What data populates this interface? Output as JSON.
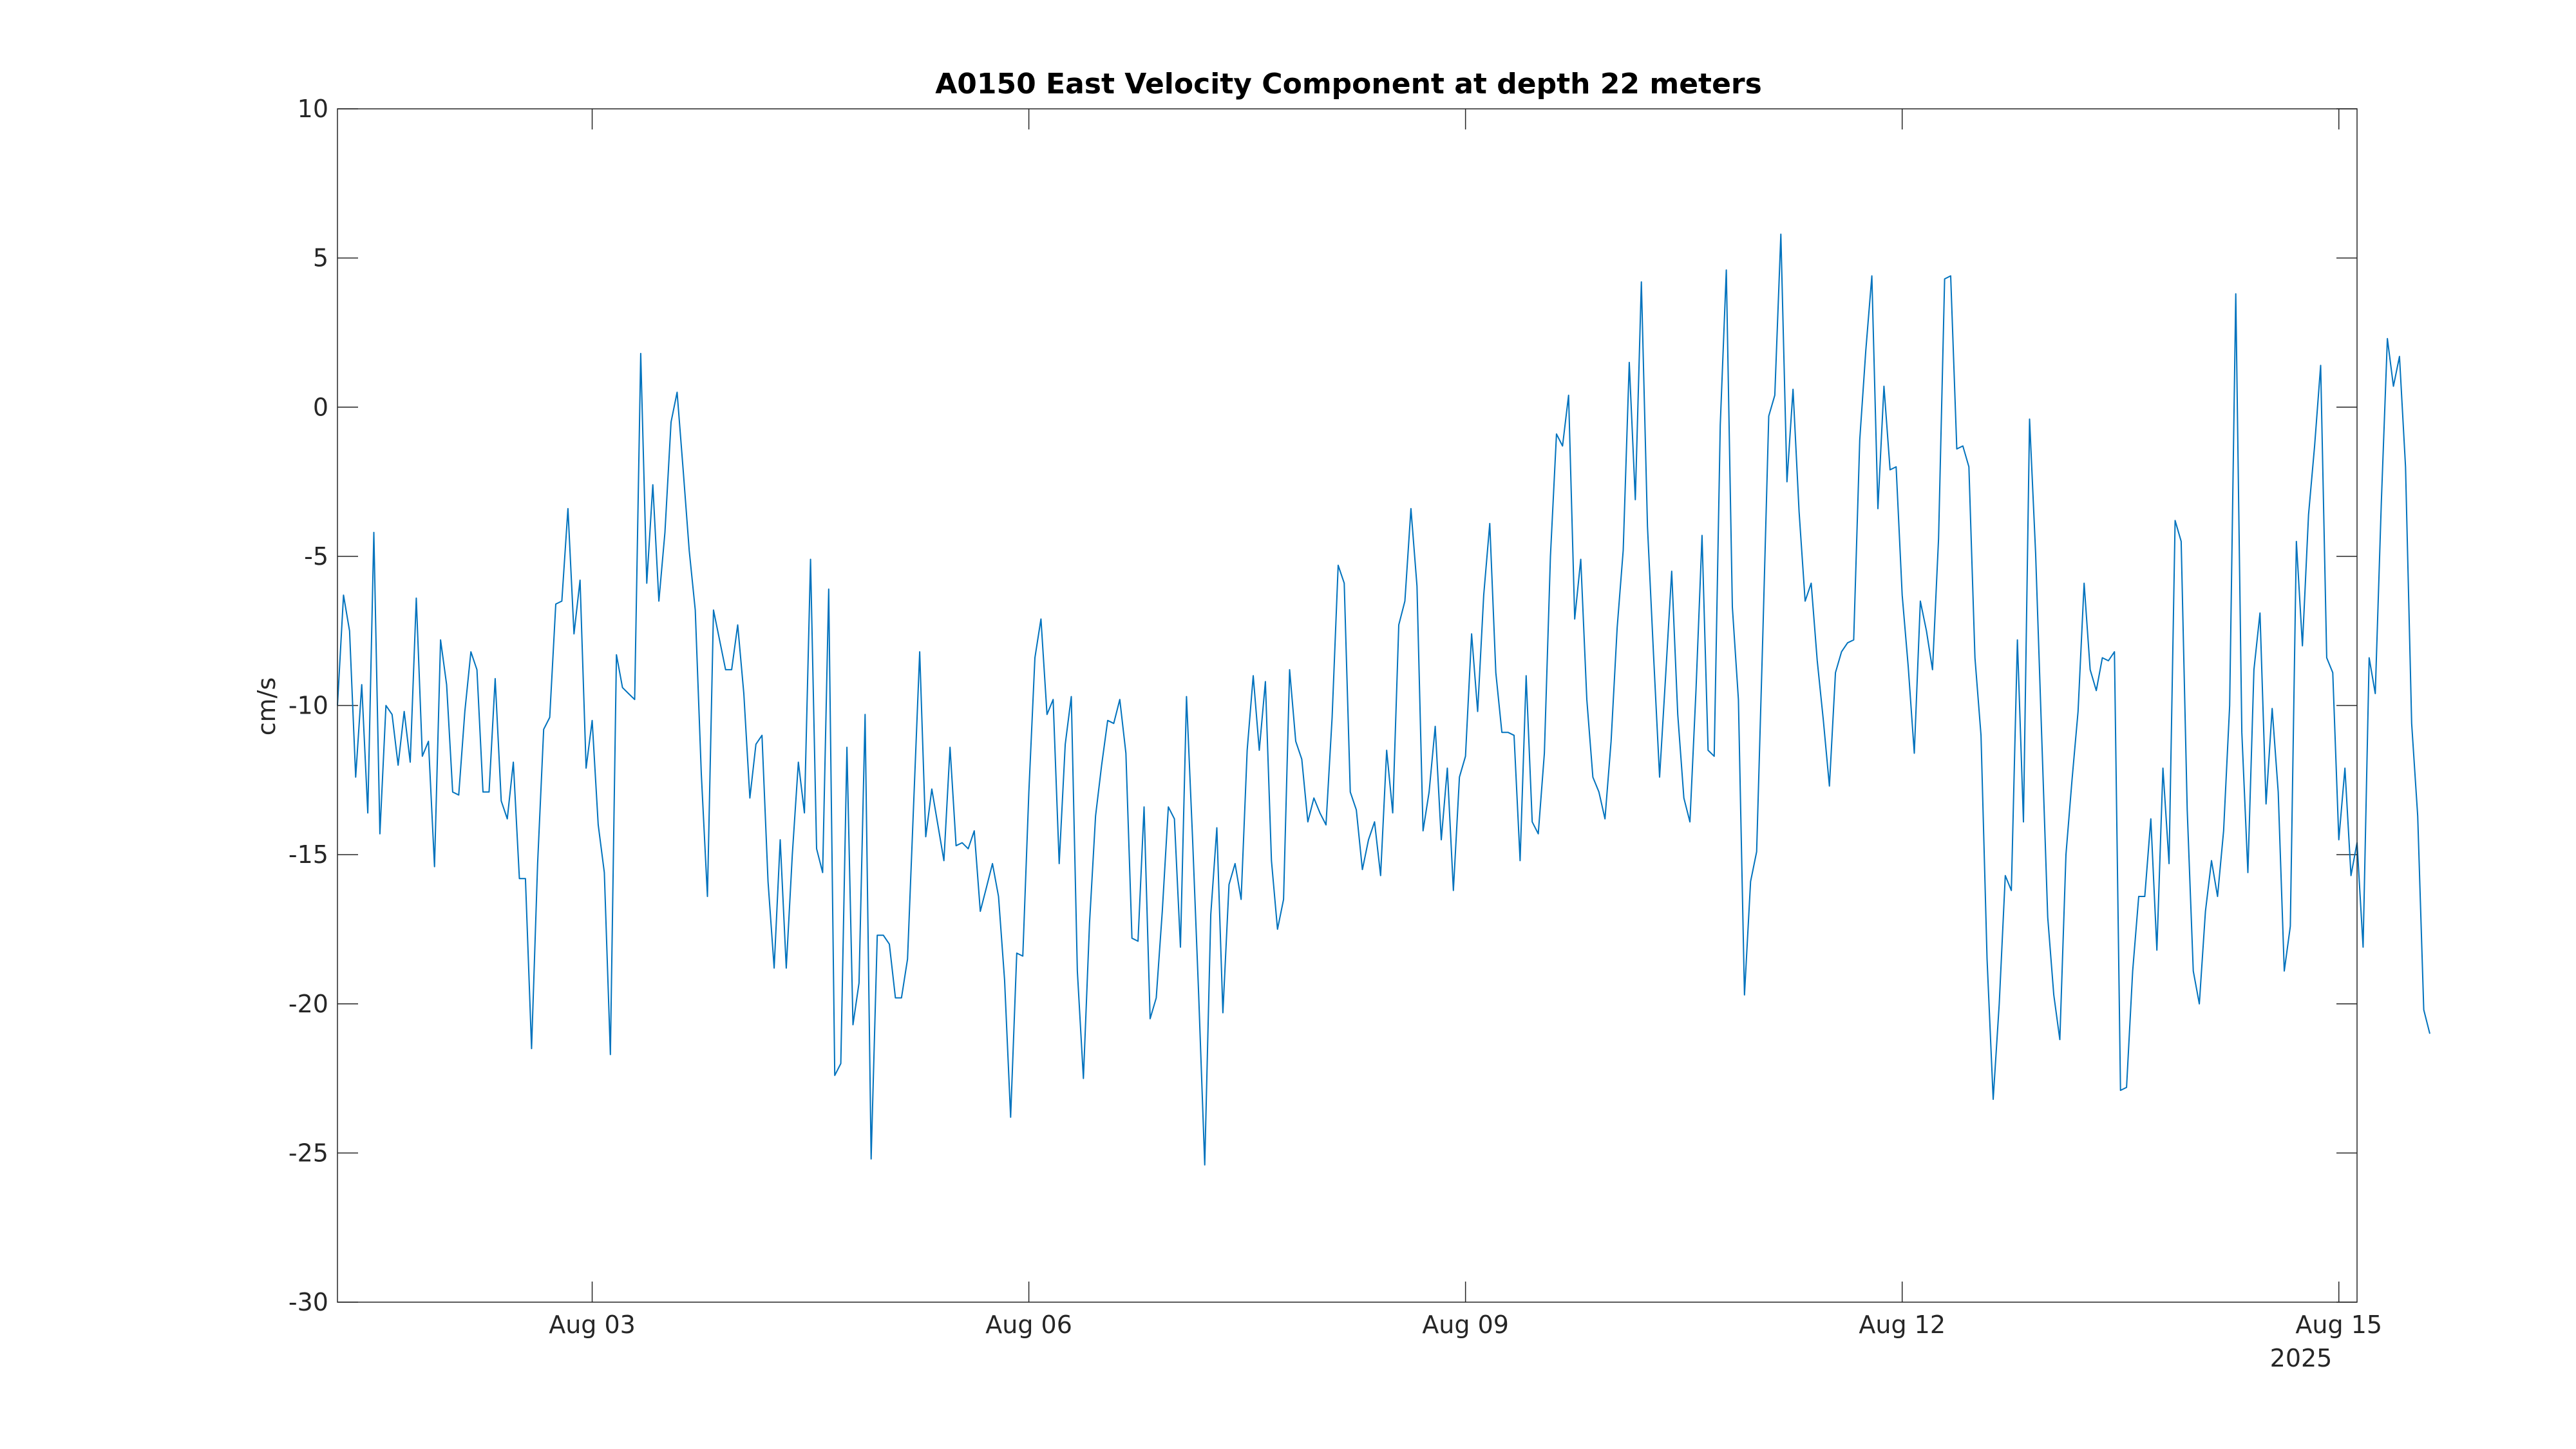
{
  "chart_data": {
    "type": "line",
    "title": "A0150 East Velocity Component at depth 22 meters",
    "xlabel": "",
    "ylabel": "cm/s",
    "xlim": [
      "2025-08-01T06:00",
      "2025-08-15T03:00"
    ],
    "ylim": [
      -30,
      10
    ],
    "yticks": [
      -30,
      -25,
      -20,
      -15,
      -10,
      -5,
      0,
      5,
      10
    ],
    "xticks": [
      {
        "date": "2025-08-03",
        "label": "Aug 03"
      },
      {
        "date": "2025-08-06",
        "label": "Aug 06"
      },
      {
        "date": "2025-08-09",
        "label": "Aug 09"
      },
      {
        "date": "2025-08-12",
        "label": "Aug 12"
      },
      {
        "date": "2025-08-15",
        "label": "Aug 15"
      }
    ],
    "x_secondary_label": "2025",
    "grid": false,
    "line_color": "#0072BD",
    "series": [
      {
        "x_start": "2025-08-01T06:00",
        "x_step_hours": 1,
        "values": [
          -10.0,
          -6.3,
          -7.5,
          -12.4,
          -9.3,
          -13.6,
          -4.2,
          -14.3,
          -10.0,
          -10.3,
          -12.0,
          -10.2,
          -11.9,
          -6.4,
          -11.7,
          -11.2,
          -15.4,
          -7.8,
          -9.3,
          -12.9,
          -13.0,
          -10.2,
          -8.2,
          -8.8,
          -12.9,
          -12.9,
          -9.1,
          -13.2,
          -13.8,
          -11.9,
          -15.8,
          -15.8,
          -21.5,
          -15.3,
          -10.8,
          -10.4,
          -6.6,
          -6.5,
          -3.4,
          -7.6,
          -5.8,
          -12.1,
          -10.5,
          -14.0,
          -15.6,
          -21.7,
          -8.3,
          -9.4,
          -9.6,
          -9.8,
          1.8,
          -5.9,
          -2.6,
          -6.5,
          -4.2,
          -0.5,
          0.5,
          -2.1,
          -4.8,
          -6.8,
          -12.3,
          -16.4,
          -6.8,
          -7.8,
          -8.8,
          -8.8,
          -7.3,
          -9.6,
          -13.1,
          -11.3,
          -11.0,
          -15.9,
          -18.8,
          -14.5,
          -18.8,
          -15.0,
          -11.9,
          -13.6,
          -5.1,
          -14.8,
          -15.6,
          -6.1,
          -22.4,
          -22.0,
          -11.4,
          -20.7,
          -19.3,
          -10.3,
          -25.2,
          -17.7,
          -17.7,
          -18.0,
          -19.8,
          -19.8,
          -18.5,
          -13.3,
          -8.2,
          -14.4,
          -12.8,
          -14.0,
          -15.2,
          -11.4,
          -14.7,
          -14.6,
          -14.8,
          -14.2,
          -16.9,
          -16.1,
          -15.3,
          -16.4,
          -19.2,
          -23.8,
          -18.3,
          -18.4,
          -12.9,
          -8.4,
          -7.1,
          -10.3,
          -9.8,
          -15.3,
          -11.3,
          -9.7,
          -18.9,
          -22.5,
          -17.3,
          -13.7,
          -12.0,
          -10.5,
          -10.6,
          -9.8,
          -11.6,
          -17.8,
          -17.9,
          -13.4,
          -20.5,
          -19.8,
          -16.9,
          -13.4,
          -13.8,
          -18.1,
          -9.7,
          -14.5,
          -19.7,
          -25.4,
          -17.0,
          -14.1,
          -20.3,
          -16.0,
          -15.3,
          -16.5,
          -11.5,
          -9.0,
          -11.5,
          -9.2,
          -15.2,
          -17.5,
          -16.5,
          -8.8,
          -11.2,
          -11.8,
          -13.9,
          -13.1,
          -13.6,
          -14.0,
          -10.4,
          -5.3,
          -5.9,
          -12.9,
          -13.5,
          -15.5,
          -14.5,
          -13.9,
          -15.7,
          -11.5,
          -13.6,
          -7.3,
          -6.5,
          -3.4,
          -6.0,
          -14.2,
          -12.9,
          -10.7,
          -14.5,
          -12.1,
          -16.2,
          -12.4,
          -11.7,
          -7.6,
          -10.2,
          -6.3,
          -3.9,
          -8.9,
          -10.9,
          -10.9,
          -11.0,
          -15.2,
          -9.0,
          -13.9,
          -14.3,
          -11.6,
          -5.0,
          -0.9,
          -1.3,
          0.4,
          -7.1,
          -5.1,
          -9.8,
          -12.4,
          -12.9,
          -13.8,
          -11.2,
          -7.4,
          -4.8,
          1.5,
          -3.1,
          4.2,
          -4.0,
          -8.3,
          -12.4,
          -9.0,
          -5.5,
          -10.3,
          -13.1,
          -13.9,
          -9.5,
          -4.3,
          -11.5,
          -11.7,
          -0.6,
          4.6,
          -6.7,
          -9.8,
          -19.7,
          -15.9,
          -14.9,
          -7.8,
          -0.3,
          0.4,
          5.8,
          -2.5,
          0.6,
          -3.5,
          -6.5,
          -5.9,
          -8.5,
          -10.5,
          -12.7,
          -8.9,
          -8.2,
          -7.9,
          -7.8,
          -1.1,
          1.9,
          4.4,
          -3.4,
          0.7,
          -2.1,
          -2.0,
          -6.3,
          -8.7,
          -11.6,
          -6.5,
          -7.5,
          -8.8,
          -4.4,
          4.3,
          4.4,
          -1.4,
          -1.3,
          -2.0,
          -8.4,
          -11.0,
          -18.5,
          -23.2,
          -20.0,
          -15.7,
          -16.2,
          -7.8,
          -13.9,
          -0.4,
          -4.9,
          -11.0,
          -17.1,
          -19.7,
          -21.2,
          -15.0,
          -12.5,
          -10.2,
          -5.9,
          -8.8,
          -9.5,
          -8.4,
          -8.5,
          -8.2,
          -22.9,
          -22.8,
          -18.9,
          -16.4,
          -16.4,
          -13.8,
          -18.2,
          -12.1,
          -15.3,
          -3.8,
          -4.5,
          -13.5,
          -18.9,
          -20.0,
          -16.9,
          -15.2,
          -16.4,
          -14.2,
          -10.0,
          3.8,
          -10.9,
          -15.6,
          -8.8,
          -6.9,
          -13.3,
          -10.1,
          -12.9,
          -18.9,
          -17.4,
          -4.5,
          -8.0,
          -3.6,
          -1.3,
          1.4,
          -8.4,
          -8.9,
          -14.5,
          -12.1,
          -15.7,
          -14.6,
          -18.1,
          -8.4,
          -9.6,
          -3.2,
          2.3,
          0.7,
          1.7,
          -2.0,
          -10.6,
          -13.7,
          -20.2,
          -21.0
        ]
      }
    ]
  }
}
